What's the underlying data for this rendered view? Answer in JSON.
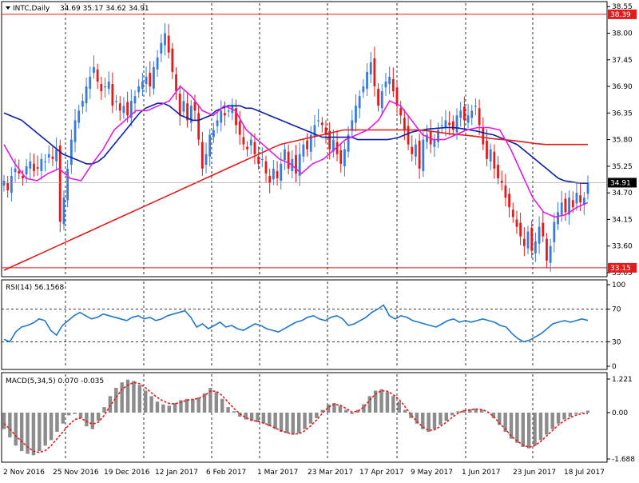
{
  "header": {
    "symbol": "INTC,Daily",
    "ohlc": "34.69 35.17 34.62 34.91"
  },
  "colors": {
    "bull": "#3a7bd5",
    "bear": "#e41b1b",
    "ma_blue": "#0b1fa8",
    "ma_red": "#e41b1b",
    "ma_magenta": "#e01ee0",
    "rsi_line": "#1f78c8",
    "macd_hist": "#8c8c8c",
    "macd_signal": "#e41b1b",
    "hline": "#e41b1b",
    "grid": "#000000"
  },
  "chart_data": [
    {
      "type": "candlestick",
      "symbol": "INTC",
      "timeframe": "Daily",
      "last_price": "34.91",
      "price_axis_ticks": [
        "38.55",
        "38.00",
        "37.45",
        "36.90",
        "36.35",
        "35.80",
        "35.25",
        "34.70",
        "34.15",
        "33.60",
        "33.05"
      ],
      "ylim": [
        33.0,
        38.62
      ],
      "hlines": [
        {
          "value": 38.39,
          "label": "38.39"
        },
        {
          "value": 33.15,
          "label": "33.15"
        }
      ],
      "x_tick_labels": [
        "2 Nov 2016",
        "25 Nov 2016",
        "19 Dec 2016",
        "12 Jan 2017",
        "6 Feb 2017",
        "1 Mar 2017",
        "23 Mar 2017",
        "17 Apr 2017",
        "9 May 2017",
        "1 Jun 2017",
        "23 Jun 2017",
        "18 Jul 2017"
      ],
      "closes": [
        34.95,
        34.75,
        35.05,
        35.2,
        35.1,
        35.0,
        35.25,
        35.35,
        35.15,
        35.2,
        35.4,
        35.35,
        35.5,
        35.4,
        35.6,
        34.1,
        34.6,
        35.2,
        35.8,
        36.2,
        36.4,
        36.6,
        36.9,
        37.1,
        37.3,
        37.0,
        36.8,
        36.9,
        37.0,
        36.5,
        36.6,
        36.4,
        36.5,
        36.3,
        36.6,
        36.7,
        36.9,
        37.0,
        37.1,
        36.9,
        37.3,
        37.5,
        37.8,
        38.0,
        37.6,
        37.2,
        36.8,
        36.3,
        36.6,
        36.2,
        36.5,
        36.4,
        35.8,
        35.2,
        35.5,
        35.9,
        36.0,
        36.2,
        36.4,
        36.3,
        36.4,
        36.5,
        36.1,
        35.9,
        35.7,
        35.6,
        35.8,
        35.5,
        35.3,
        35.4,
        35.1,
        34.9,
        35.2,
        35.0,
        35.3,
        35.6,
        35.2,
        35.4,
        35.1,
        35.5,
        35.7,
        35.6,
        35.9,
        36.1,
        36.2,
        36.1,
        35.9,
        35.6,
        35.8,
        35.5,
        35.3,
        35.6,
        35.9,
        36.2,
        36.5,
        36.7,
        36.9,
        37.2,
        37.4,
        36.9,
        36.5,
        36.8,
        37.0,
        37.1,
        36.8,
        36.5,
        36.3,
        36.0,
        35.7,
        35.5,
        35.7,
        35.2,
        35.8,
        35.9,
        35.7,
        35.8,
        36.0,
        36.1,
        36.2,
        36.1,
        36.0,
        36.3,
        36.4,
        36.2,
        36.3,
        36.4,
        36.5,
        36.1,
        35.7,
        35.4,
        35.6,
        35.2,
        35.0,
        34.9,
        34.6,
        34.4,
        34.2,
        34.0,
        33.8,
        33.6,
        33.9,
        33.5,
        33.7,
        34.0,
        33.8,
        33.3,
        33.6,
        34.1,
        34.3,
        34.5,
        34.3,
        34.6,
        34.4,
        34.7,
        34.5,
        34.6,
        34.91
      ],
      "series": [
        {
          "name": "",
          "values": [
            36.35,
            36.3,
            36.25,
            36.2,
            36.1,
            36.0,
            35.9,
            35.8,
            35.7,
            35.6,
            35.5,
            35.45,
            35.4,
            35.35,
            35.3,
            35.3,
            35.35,
            35.45,
            35.6,
            35.75,
            35.9,
            36.05,
            36.2,
            36.35,
            36.45,
            36.5,
            36.55,
            36.55,
            36.5,
            36.4,
            36.3,
            36.25,
            36.2,
            36.2,
            36.25,
            36.3,
            36.4,
            36.45,
            36.5,
            36.5,
            36.5,
            36.45,
            36.45,
            36.4,
            36.35,
            36.3,
            36.25,
            36.2,
            36.15,
            36.1,
            36.05,
            36.0,
            35.95,
            35.9,
            35.85,
            35.85,
            35.85,
            35.85,
            35.85,
            35.85,
            35.8,
            35.8,
            35.8,
            35.8,
            35.8,
            35.8,
            35.82,
            35.85,
            35.9,
            35.95,
            35.98,
            36.0,
            36.02,
            36.03,
            36.04,
            36.05,
            36.05,
            36.04,
            36.02,
            36.0,
            35.98,
            35.95,
            35.92,
            35.9,
            35.85,
            35.8,
            35.75,
            35.7,
            35.6,
            35.5,
            35.4,
            35.3,
            35.2,
            35.1,
            35.0,
            34.95,
            34.93,
            34.91,
            34.9,
            34.9
          ]
        },
        {
          "name": "",
          "values": [
            33.1,
            33.2,
            33.3,
            33.4,
            33.5,
            33.6,
            33.7,
            33.8,
            33.9,
            34.0,
            34.1,
            34.2,
            34.3,
            34.4,
            34.5,
            34.6,
            34.7,
            34.8,
            34.9,
            35.0,
            35.1,
            35.2,
            35.3,
            35.4,
            35.5,
            35.6,
            35.7,
            35.75,
            35.8,
            35.85,
            35.9,
            35.95,
            36.0,
            36.0,
            36.0,
            36.0,
            36.0,
            36.0,
            36.0,
            36.0,
            35.98,
            35.95,
            35.92,
            35.9,
            35.88,
            35.85,
            35.82,
            35.8,
            35.78,
            35.75,
            35.72,
            35.7,
            35.7,
            35.7,
            35.7,
            35.7
          ]
        },
        {
          "name": "",
          "values": [
            35.7,
            35.3,
            35.0,
            34.95,
            35.1,
            35.2,
            35.0,
            34.95,
            35.3,
            35.6,
            36.0,
            36.2,
            36.4,
            36.4,
            36.5,
            36.6,
            36.9,
            36.7,
            36.4,
            36.3,
            36.5,
            36.4,
            36.0,
            35.8,
            35.6,
            35.4,
            35.3,
            35.1,
            35.3,
            35.4,
            35.6,
            35.8,
            35.9,
            36.0,
            36.2,
            36.6,
            36.5,
            36.2,
            35.9,
            35.8,
            35.8,
            35.9,
            36.0,
            36.05,
            36.05,
            36.0,
            35.6,
            35.1,
            34.6,
            34.3,
            34.2,
            34.25,
            34.4,
            34.5
          ]
        }
      ]
    },
    {
      "type": "line",
      "indicator": "RSI(14)",
      "title": "RSI(14) 56.1568",
      "ylim": [
        0,
        100
      ],
      "y_ticks": [
        "100",
        "70",
        "30",
        "0"
      ],
      "levels": [
        70,
        30
      ],
      "values": [
        33,
        30,
        42,
        48,
        50,
        53,
        58,
        56,
        44,
        38,
        50,
        56,
        62,
        66,
        62,
        58,
        60,
        64,
        62,
        60,
        58,
        56,
        60,
        62,
        58,
        60,
        56,
        58,
        62,
        64,
        66,
        68,
        60,
        48,
        52,
        46,
        50,
        54,
        48,
        50,
        46,
        44,
        48,
        52,
        50,
        46,
        44,
        42,
        46,
        50,
        54,
        56,
        60,
        62,
        58,
        56,
        60,
        62,
        58,
        50,
        52,
        56,
        60,
        66,
        70,
        75,
        62,
        58,
        62,
        60,
        56,
        54,
        52,
        50,
        48,
        52,
        56,
        58,
        54,
        56,
        54,
        56,
        58,
        56,
        54,
        50,
        48,
        40,
        34,
        30,
        32,
        36,
        40,
        46,
        52,
        54,
        56,
        54,
        56,
        58,
        56.16
      ]
    },
    {
      "type": "bar",
      "indicator": "MACD(5,34,5)",
      "title": "MACD(5,34,5) 0.070 -0.035",
      "ylim": [
        -1.688,
        1.221
      ],
      "y_ticks": [
        "1.221",
        "0.00",
        "-1.688"
      ],
      "histogram": [
        -0.6,
        -0.9,
        -1.2,
        -1.4,
        -1.5,
        -1.55,
        -1.4,
        -1.2,
        -1.0,
        -0.7,
        -0.4,
        -0.1,
        -0.05,
        -0.2,
        -0.5,
        -0.6,
        -0.3,
        0.2,
        0.6,
        0.9,
        1.1,
        1.2,
        1.15,
        1.0,
        0.8,
        0.6,
        0.4,
        0.3,
        0.25,
        0.35,
        0.45,
        0.5,
        0.5,
        0.55,
        0.7,
        0.9,
        0.75,
        0.5,
        0.2,
        0.05,
        -0.15,
        -0.25,
        -0.3,
        -0.35,
        -0.4,
        -0.5,
        -0.6,
        -0.7,
        -0.75,
        -0.8,
        -0.75,
        -0.6,
        -0.4,
        -0.2,
        0.1,
        0.3,
        0.35,
        0.25,
        0.1,
        -0.05,
        0.1,
        0.3,
        0.6,
        0.8,
        0.85,
        0.75,
        0.6,
        0.4,
        0.1,
        -0.2,
        -0.4,
        -0.6,
        -0.7,
        -0.6,
        -0.45,
        -0.3,
        -0.1,
        0.05,
        0.1,
        0.12,
        0.15,
        0.1,
        0.0,
        -0.2,
        -0.45,
        -0.7,
        -0.95,
        -1.1,
        -1.25,
        -1.3,
        -1.2,
        -1.0,
        -0.8,
        -0.6,
        -0.4,
        -0.25,
        -0.15,
        -0.05,
        0.02,
        0.07
      ],
      "signal": [
        -0.4,
        -0.6,
        -0.85,
        -1.05,
        -1.25,
        -1.4,
        -1.45,
        -1.38,
        -1.2,
        -0.95,
        -0.7,
        -0.45,
        -0.25,
        -0.2,
        -0.32,
        -0.42,
        -0.35,
        -0.1,
        0.25,
        0.55,
        0.85,
        1.0,
        1.1,
        1.05,
        0.9,
        0.72,
        0.55,
        0.42,
        0.33,
        0.32,
        0.38,
        0.45,
        0.48,
        0.52,
        0.62,
        0.78,
        0.78,
        0.62,
        0.38,
        0.15,
        -0.05,
        -0.18,
        -0.27,
        -0.32,
        -0.38,
        -0.46,
        -0.56,
        -0.66,
        -0.73,
        -0.78,
        -0.77,
        -0.66,
        -0.48,
        -0.27,
        -0.02,
        0.2,
        0.3,
        0.27,
        0.15,
        0.02,
        0.05,
        0.2,
        0.45,
        0.68,
        0.8,
        0.78,
        0.65,
        0.48,
        0.22,
        -0.08,
        -0.32,
        -0.52,
        -0.65,
        -0.62,
        -0.5,
        -0.35,
        -0.17,
        -0.02,
        0.07,
        0.1,
        0.13,
        0.11,
        0.03,
        -0.14,
        -0.38,
        -0.6,
        -0.85,
        -1.03,
        -1.18,
        -1.26,
        -1.2,
        -1.05,
        -0.85,
        -0.65,
        -0.45,
        -0.3,
        -0.18,
        -0.09,
        -0.035,
        -0.035
      ]
    }
  ]
}
